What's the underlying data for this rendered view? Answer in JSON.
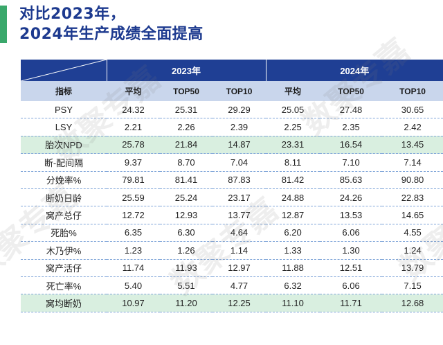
{
  "title": {
    "line1": "对比2023年，",
    "line2": "2024年生产成绩全面提高"
  },
  "watermark": {
    "text": "数聚专嘉"
  },
  "colors": {
    "header_blue": "#1f3f94",
    "subheader_blue": "#c9d6ec",
    "highlight_green": "#d9efe0",
    "accent_green": "#3aa86b",
    "title_color": "#1d3a8f"
  },
  "table": {
    "groups": [
      "2023年",
      "2024年"
    ],
    "columns": [
      "指标",
      "平均",
      "TOP50",
      "TOP10",
      "平均",
      "TOP50",
      "TOP10"
    ],
    "rows": [
      {
        "metric": "PSY",
        "values": [
          "24.32",
          "25.31",
          "29.29",
          "25.05",
          "27.48",
          "30.65"
        ],
        "highlight": false
      },
      {
        "metric": "LSY",
        "values": [
          "2.21",
          "2.26",
          "2.39",
          "2.25",
          "2.35",
          "2.42"
        ],
        "highlight": false
      },
      {
        "metric": "胎次NPD",
        "values": [
          "25.78",
          "21.84",
          "14.87",
          "23.31",
          "16.54",
          "13.45"
        ],
        "highlight": true
      },
      {
        "metric": "断-配间隔",
        "values": [
          "9.37",
          "8.70",
          "7.04",
          "8.11",
          "7.10",
          "7.14"
        ],
        "highlight": false
      },
      {
        "metric": "分娩率%",
        "values": [
          "79.81",
          "81.41",
          "87.83",
          "81.42",
          "85.63",
          "90.80"
        ],
        "highlight": false
      },
      {
        "metric": "断奶日龄",
        "values": [
          "25.59",
          "25.24",
          "23.17",
          "24.88",
          "24.26",
          "22.83"
        ],
        "highlight": false
      },
      {
        "metric": "窝产总仔",
        "values": [
          "12.72",
          "12.93",
          "13.77",
          "12.87",
          "13.53",
          "14.65"
        ],
        "highlight": false
      },
      {
        "metric": "死胎%",
        "values": [
          "6.35",
          "6.30",
          "4.64",
          "6.20",
          "6.06",
          "4.55"
        ],
        "highlight": false
      },
      {
        "metric": "木乃伊%",
        "values": [
          "1.23",
          "1.26",
          "1.14",
          "1.33",
          "1.30",
          "1.24"
        ],
        "highlight": false
      },
      {
        "metric": "窝产活仔",
        "values": [
          "11.74",
          "11.93",
          "12.97",
          "11.88",
          "12.51",
          "13.79"
        ],
        "highlight": false
      },
      {
        "metric": "死亡率%",
        "values": [
          "5.40",
          "5.51",
          "4.77",
          "6.32",
          "6.06",
          "7.15"
        ],
        "highlight": false
      },
      {
        "metric": "窝均断奶",
        "values": [
          "10.97",
          "11.20",
          "12.25",
          "11.10",
          "11.71",
          "12.68"
        ],
        "highlight": true
      }
    ]
  }
}
